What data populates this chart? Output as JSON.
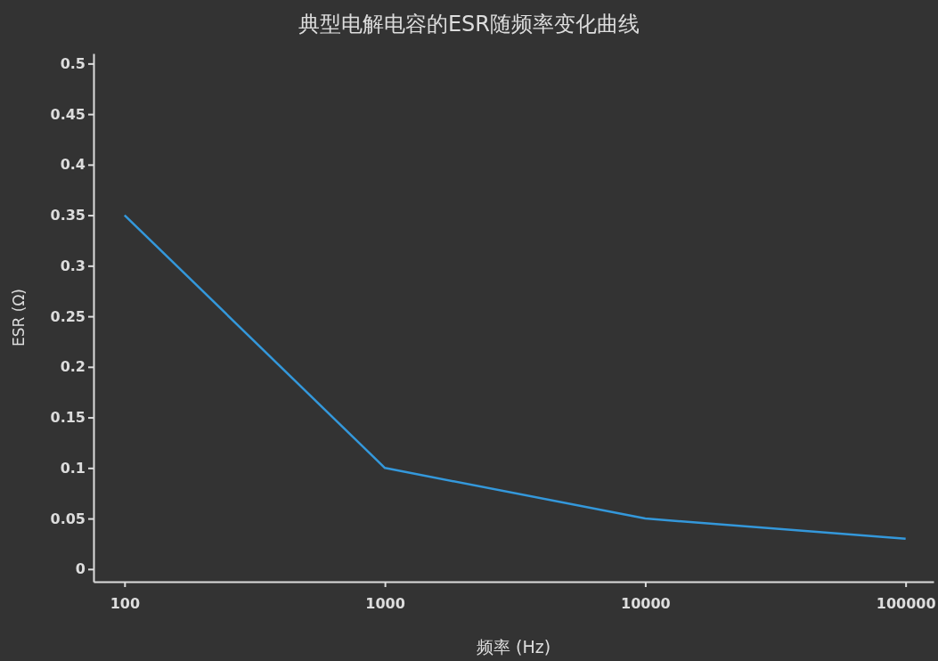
{
  "chart_data": {
    "type": "line",
    "title": "典型电解电容的ESR随频率变化曲线",
    "xlabel": "频率 (Hz)",
    "ylabel": "ESR (Ω)",
    "x": [
      100,
      1000,
      10000,
      100000
    ],
    "series": [
      {
        "color": "#3498db",
        "values": [
          0.35,
          0.1,
          0.05,
          0.03
        ]
      }
    ],
    "log": "x",
    "xlim": [
      76,
      128000
    ],
    "ylim": [
      -0.0125,
      0.51
    ],
    "xticks": [
      100,
      1000,
      10000,
      100000
    ],
    "yticks": [
      0,
      0.05,
      0.1,
      0.15,
      0.2,
      0.25,
      0.3,
      0.35,
      0.4,
      0.45,
      0.5
    ],
    "grid": false,
    "marker": "none",
    "line_style": "solid"
  }
}
